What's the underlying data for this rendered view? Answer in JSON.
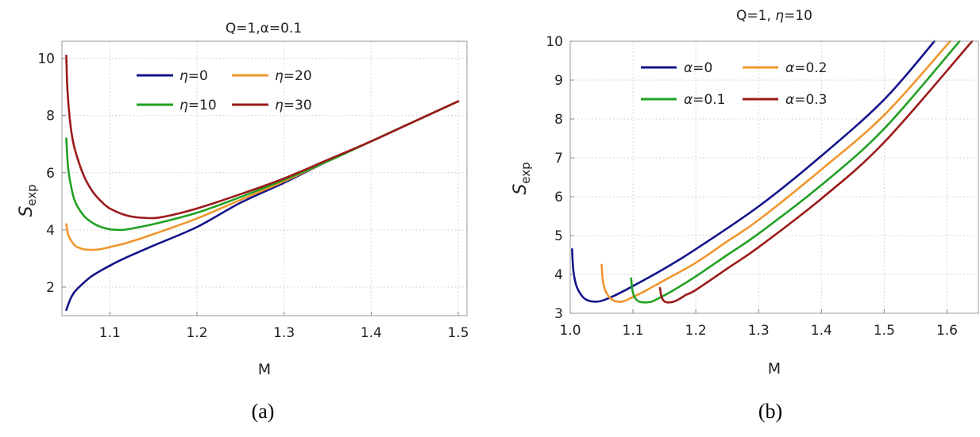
{
  "chart_data": [
    {
      "type": "line",
      "title": "Q=1,α=0.1",
      "xlabel": "M",
      "ylabel": "S",
      "ylabel_sub": "exp",
      "caption": "(a)",
      "xlim": [
        1.045,
        1.51
      ],
      "ylim": [
        1.0,
        10.6
      ],
      "xticks": [
        "1.1",
        "1.2",
        "1.3",
        "1.4",
        "1.5"
      ],
      "xtick_values": [
        1.1,
        1.2,
        1.3,
        1.4,
        1.5
      ],
      "yticks": [
        "2",
        "4",
        "6",
        "8",
        "10"
      ],
      "ytick_values": [
        2,
        4,
        6,
        8,
        10
      ],
      "grid": true,
      "legend_position": "top-center",
      "series": [
        {
          "name": "η=0",
          "label_main": "η",
          "label_val": "=0",
          "color": "#14148c",
          "x": [
            1.05,
            1.055,
            1.06,
            1.07,
            1.08,
            1.1,
            1.12,
            1.15,
            1.2,
            1.25,
            1.3,
            1.35,
            1.4,
            1.45,
            1.5
          ],
          "y": [
            1.2,
            1.6,
            1.85,
            2.15,
            2.4,
            2.75,
            3.05,
            3.45,
            4.1,
            4.95,
            5.65,
            6.4,
            7.1,
            7.8,
            8.5
          ]
        },
        {
          "name": "η=20",
          "label_main": "η",
          "label_val": "=20",
          "color": "#f0962d",
          "x": [
            1.05,
            1.052,
            1.055,
            1.06,
            1.065,
            1.07,
            1.08,
            1.09,
            1.1,
            1.12,
            1.15,
            1.2,
            1.25,
            1.3,
            1.35,
            1.4,
            1.45,
            1.5
          ],
          "y": [
            4.2,
            3.85,
            3.65,
            3.45,
            3.37,
            3.32,
            3.3,
            3.33,
            3.4,
            3.55,
            3.85,
            4.4,
            5.05,
            5.7,
            6.4,
            7.1,
            7.8,
            8.5
          ]
        },
        {
          "name": "η=10",
          "label_main": "η",
          "label_val": "=10",
          "color": "#22a022",
          "x": [
            1.05,
            1.052,
            1.055,
            1.06,
            1.07,
            1.08,
            1.09,
            1.1,
            1.11,
            1.12,
            1.15,
            1.2,
            1.25,
            1.3,
            1.35,
            1.4,
            1.45,
            1.5
          ],
          "y": [
            7.2,
            6.2,
            5.6,
            5.0,
            4.5,
            4.25,
            4.1,
            4.02,
            4.0,
            4.02,
            4.2,
            4.6,
            5.15,
            5.75,
            6.4,
            7.1,
            7.8,
            8.5
          ]
        },
        {
          "name": "η=30",
          "label_main": "η",
          "label_val": "=30",
          "color": "#9b1a1a",
          "x": [
            1.05,
            1.051,
            1.053,
            1.056,
            1.06,
            1.07,
            1.08,
            1.09,
            1.1,
            1.12,
            1.14,
            1.16,
            1.2,
            1.25,
            1.3,
            1.35,
            1.4,
            1.45,
            1.5
          ],
          "y": [
            10.1,
            9.1,
            8.2,
            7.4,
            6.8,
            5.9,
            5.35,
            5.0,
            4.75,
            4.5,
            4.42,
            4.45,
            4.75,
            5.25,
            5.8,
            6.45,
            7.1,
            7.8,
            8.5
          ]
        }
      ]
    },
    {
      "type": "line",
      "title_prefix": "Q=1, ",
      "title_eta": "η",
      "title_suffix": "=10",
      "xlabel": "M",
      "ylabel": "S",
      "ylabel_sub": "exp",
      "caption": "(b)",
      "xlim": [
        1.0,
        1.65
      ],
      "ylim": [
        3.0,
        10.0
      ],
      "xticks": [
        "1.0",
        "1.1",
        "1.2",
        "1.3",
        "1.4",
        "1.5",
        "1.6"
      ],
      "xtick_values": [
        1.0,
        1.1,
        1.2,
        1.3,
        1.4,
        1.5,
        1.6
      ],
      "yticks": [
        "3",
        "4",
        "5",
        "6",
        "7",
        "8",
        "9",
        "10"
      ],
      "ytick_values": [
        3,
        4,
        5,
        6,
        7,
        8,
        9,
        10
      ],
      "grid": true,
      "legend_position": "top-left",
      "series": [
        {
          "name": "α=0",
          "label_main": "α",
          "label_val": "=0",
          "color": "#14148c",
          "x": [
            1.003,
            1.005,
            1.01,
            1.02,
            1.03,
            1.04,
            1.05,
            1.07,
            1.1,
            1.15,
            1.2,
            1.3,
            1.4,
            1.5,
            1.58
          ],
          "y": [
            4.65,
            4.1,
            3.7,
            3.42,
            3.32,
            3.3,
            3.32,
            3.45,
            3.7,
            4.15,
            4.65,
            5.75,
            7.05,
            8.5,
            10.0
          ]
        },
        {
          "name": "α=0.2",
          "label_main": "α",
          "label_val": "=0.2",
          "color": "#f0962d",
          "x": [
            1.05,
            1.052,
            1.056,
            1.065,
            1.075,
            1.085,
            1.095,
            1.12,
            1.15,
            1.2,
            1.25,
            1.3,
            1.4,
            1.5,
            1.605
          ],
          "y": [
            4.25,
            3.85,
            3.58,
            3.37,
            3.3,
            3.31,
            3.38,
            3.58,
            3.85,
            4.3,
            4.85,
            5.4,
            6.7,
            8.1,
            10.0
          ]
        },
        {
          "name": "α=0.1",
          "label_main": "α",
          "label_val": "=0.1",
          "color": "#22a022",
          "x": [
            1.097,
            1.099,
            1.103,
            1.11,
            1.12,
            1.13,
            1.14,
            1.16,
            1.2,
            1.25,
            1.3,
            1.4,
            1.5,
            1.62
          ],
          "y": [
            3.9,
            3.6,
            3.4,
            3.3,
            3.28,
            3.3,
            3.38,
            3.55,
            3.95,
            4.5,
            5.05,
            6.3,
            7.75,
            10.0
          ]
        },
        {
          "name": "α=0.3",
          "label_main": "α",
          "label_val": "=0.3",
          "color": "#9b1a1a",
          "x": [
            1.143,
            1.145,
            1.149,
            1.155,
            1.165,
            1.175,
            1.185,
            1.2,
            1.25,
            1.3,
            1.4,
            1.5,
            1.64
          ],
          "y": [
            3.65,
            3.45,
            3.32,
            3.28,
            3.3,
            3.38,
            3.48,
            3.6,
            4.15,
            4.7,
            5.95,
            7.4,
            10.0
          ]
        }
      ]
    }
  ]
}
